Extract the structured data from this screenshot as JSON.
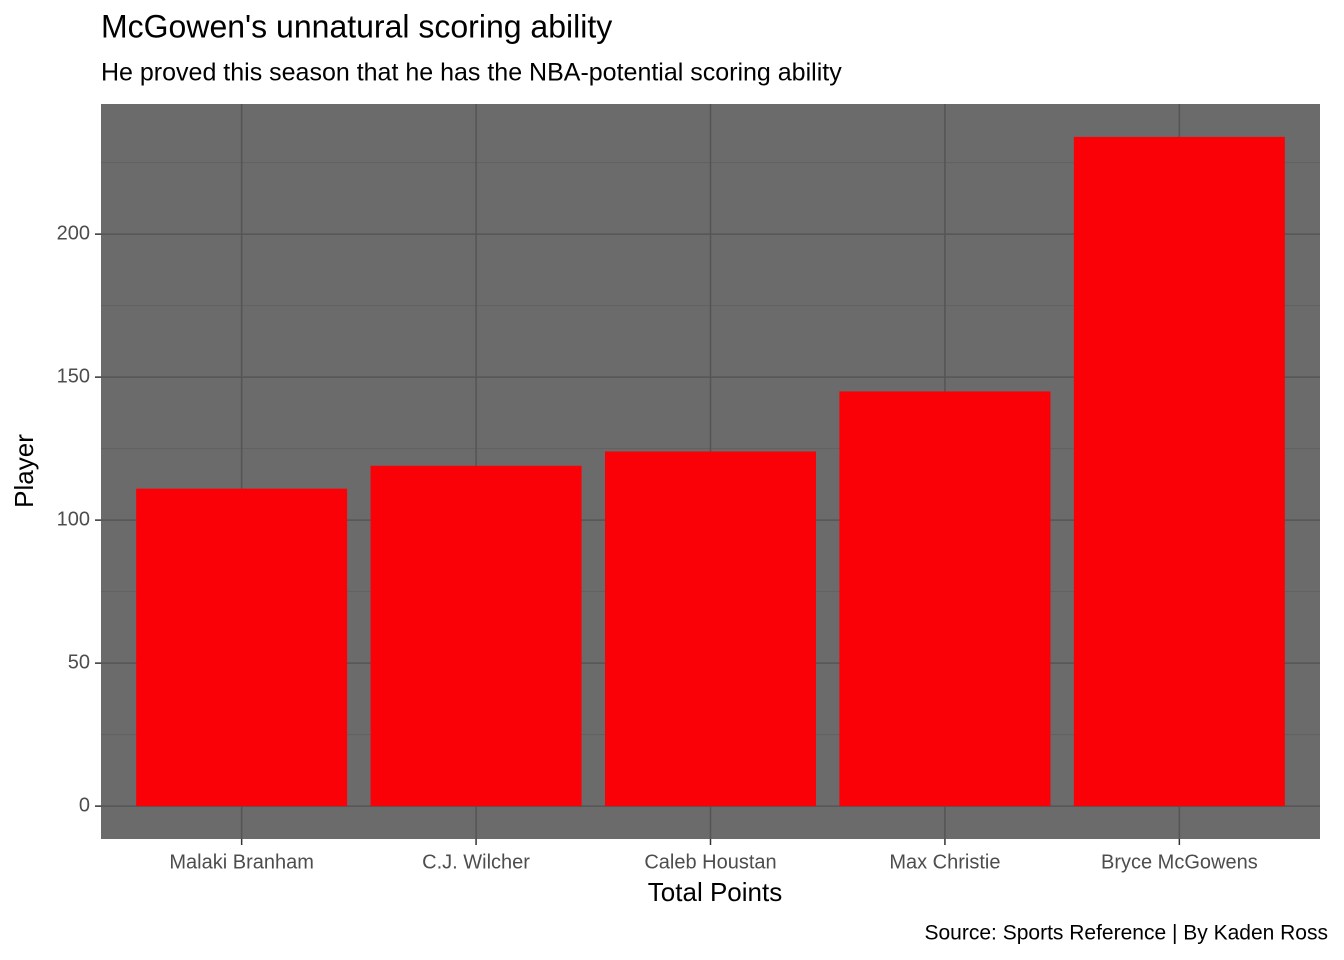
{
  "chart_data": {
    "type": "bar",
    "title": "McGowen's unnatural scoring ability",
    "subtitle": "He proved this season that he has the NBA-potential scoring ability",
    "x_label": "Total Points",
    "y_label": "Player",
    "caption": "Source: Sports Reference | By Kaden Ross",
    "categories": [
      "Malaki Branham",
      "C.J. Wilcher",
      "Caleb Houstan",
      "Max Christie",
      "Bryce McGowens"
    ],
    "values": [
      111,
      119,
      124,
      145,
      234
    ],
    "color": "#fa0007",
    "ylim": [
      -11.5,
      245.5
    ],
    "yticks": [
      0,
      50,
      100,
      150,
      200
    ],
    "grid": true
  }
}
